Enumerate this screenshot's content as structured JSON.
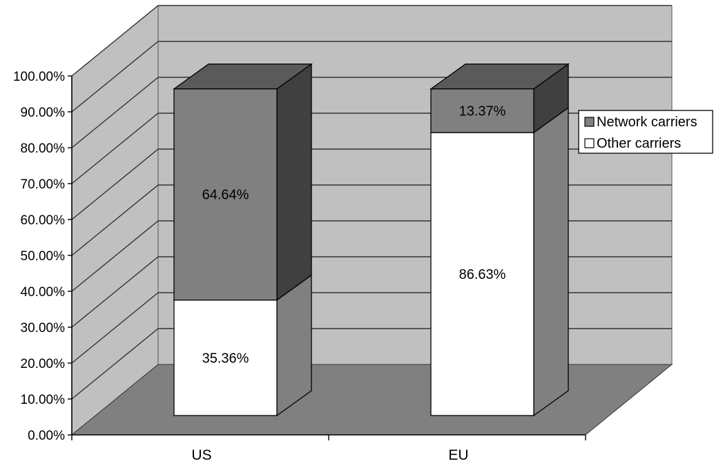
{
  "chart_data": {
    "type": "bar",
    "stacked": true,
    "three_d": true,
    "categories": [
      "US",
      "EU"
    ],
    "series": [
      {
        "name": "Other carriers",
        "values": [
          35.36,
          86.63
        ],
        "labels": [
          "35.36%",
          "86.63%"
        ],
        "color": "#ffffff"
      },
      {
        "name": "Network carriers",
        "values": [
          64.64,
          13.37
        ],
        "labels": [
          "64.64%",
          "13.37%"
        ],
        "color": "#808080"
      }
    ],
    "yticks": [
      "0.00%",
      "10.00%",
      "20.00%",
      "30.00%",
      "40.00%",
      "50.00%",
      "60.00%",
      "70.00%",
      "80.00%",
      "90.00%",
      "100.00%"
    ],
    "ylim": [
      0,
      100
    ],
    "grid": true,
    "legend_position": "right",
    "colors": {
      "back_wall": "#c0c0c0",
      "floor": "#808080",
      "network_side": "#404040",
      "other_side": "#808080",
      "gridline": "#333333"
    }
  }
}
